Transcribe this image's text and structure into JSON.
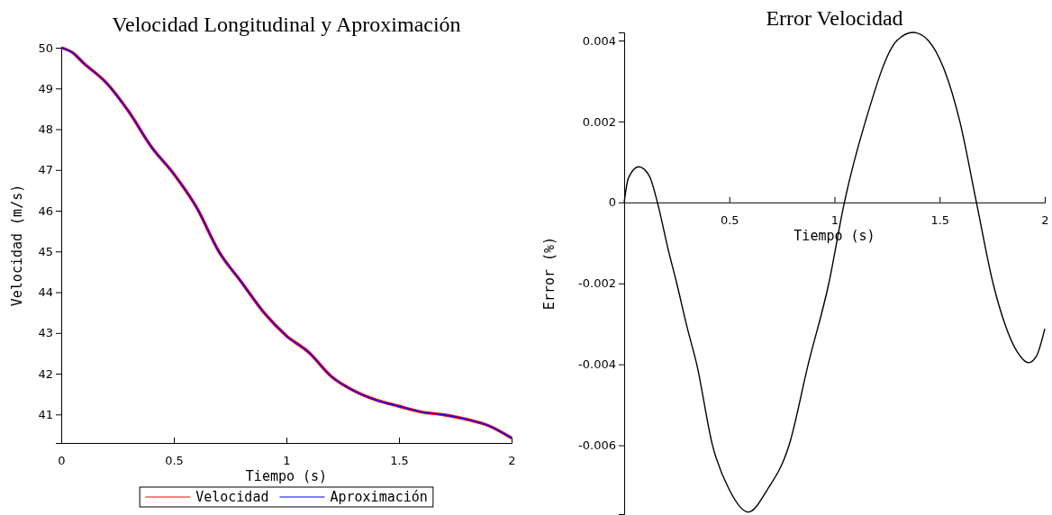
{
  "chart_data": [
    {
      "type": "line",
      "title": "Velocidad Longitudinal y Aproximación",
      "xlabel": "Tiempo (s)",
      "ylabel": "Velocidad (m/s)",
      "x": [
        0,
        0.05,
        0.1,
        0.2,
        0.3,
        0.4,
        0.5,
        0.6,
        0.7,
        0.8,
        0.9,
        1.0,
        1.1,
        1.2,
        1.3,
        1.4,
        1.5,
        1.6,
        1.7,
        1.8,
        1.9,
        2.0
      ],
      "series": [
        {
          "name": "Velocidad",
          "color": "#ff0000",
          "values": [
            50,
            49.88,
            49.62,
            49.14,
            48.43,
            47.57,
            46.9,
            46.09,
            45.0,
            44.25,
            43.5,
            42.93,
            42.52,
            41.93,
            41.58,
            41.35,
            41.2,
            41.06,
            40.99,
            40.88,
            40.72,
            40.42
          ]
        },
        {
          "name": "Aproximación",
          "color": "#0000ff",
          "values": [
            50,
            49.88,
            49.62,
            49.14,
            48.43,
            47.57,
            46.9,
            46.09,
            45.0,
            44.25,
            43.5,
            42.93,
            42.52,
            41.93,
            41.58,
            41.35,
            41.2,
            41.06,
            40.99,
            40.88,
            40.72,
            40.42
          ]
        }
      ],
      "xlim": [
        0,
        2
      ],
      "ylim": [
        40.3,
        50
      ],
      "xticks": [
        0,
        0.5,
        1,
        1.5,
        2
      ],
      "yticks": [
        41,
        42,
        43,
        44,
        45,
        46,
        47,
        48,
        49,
        50
      ],
      "legend": "bottom"
    },
    {
      "type": "line",
      "title": "Error Velocidad",
      "xlabel": "Tiempo (s)",
      "ylabel": "Error (%)",
      "x": [
        0,
        0.02,
        0.069,
        0.12,
        0.158,
        0.21,
        0.25,
        0.3,
        0.345,
        0.42,
        0.5,
        0.59,
        0.68,
        0.784,
        0.875,
        0.973,
        1.047,
        1.147,
        1.297,
        1.375,
        1.446,
        1.596,
        1.675,
        1.754,
        1.81,
        1.87,
        1.923,
        1.96,
        2.0
      ],
      "series": [
        {
          "color": "#000000",
          "values": [
            0,
            0.0006,
            0.00088,
            0.00065,
            0,
            -0.00118,
            -0.002,
            -0.0031,
            -0.004,
            -0.006,
            -0.0071,
            -0.00765,
            -0.0071,
            -0.006,
            -0.004,
            -0.002,
            0,
            0.002,
            0.004,
            0.0042,
            0.004,
            0.002,
            0,
            -0.002,
            -0.003,
            -0.0037,
            -0.00396,
            -0.0038,
            -0.00312
          ]
        }
      ],
      "xlim": [
        0,
        2
      ],
      "ylim": [
        -0.0077,
        0.0042
      ],
      "xticks": [
        0.5,
        1,
        1.5,
        2
      ],
      "yticks": [
        -0.006,
        -0.004,
        -0.002,
        0,
        0.002,
        0.004
      ]
    }
  ]
}
